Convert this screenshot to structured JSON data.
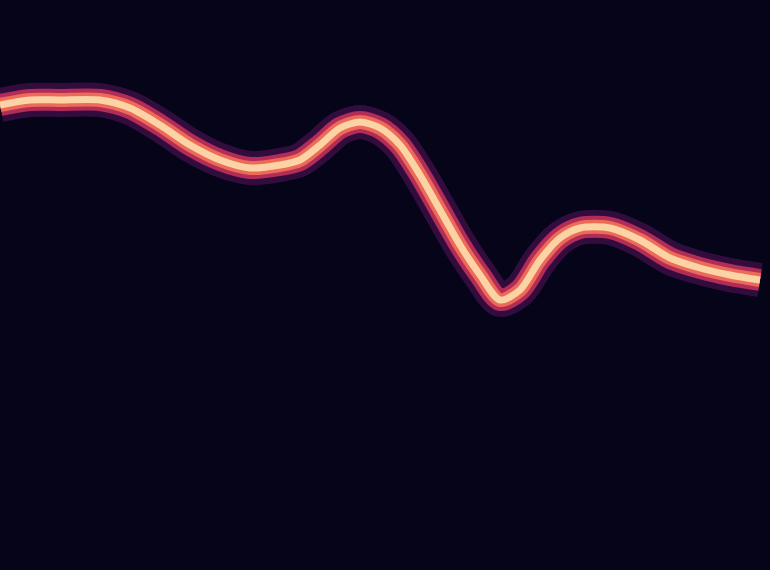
{
  "chart_data": {
    "type": "line",
    "x": [
      0,
      30,
      60,
      100,
      130,
      160,
      190,
      220,
      250,
      280,
      300,
      320,
      340,
      360,
      380,
      400,
      420,
      440,
      460,
      480,
      500,
      520,
      540,
      560,
      580,
      610,
      640,
      670,
      700,
      730,
      760
    ],
    "values": [
      465,
      470,
      470,
      470,
      462,
      445,
      425,
      410,
      402,
      405,
      410,
      425,
      442,
      448,
      442,
      425,
      395,
      360,
      325,
      295,
      270,
      280,
      310,
      332,
      342,
      342,
      330,
      312,
      302,
      295,
      290
    ],
    "color": "#fcd3a5",
    "xlim": [
      0,
      770
    ],
    "ylim": [
      0,
      570
    ],
    "grid": false,
    "tick_labels": false
  }
}
